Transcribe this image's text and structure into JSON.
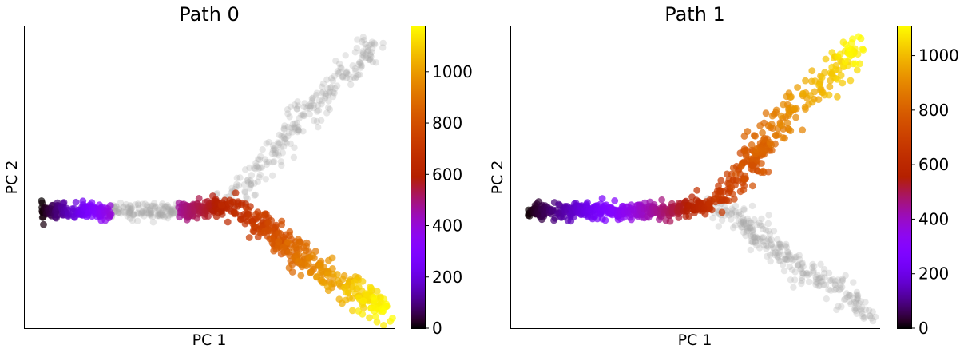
{
  "chart_data": [
    {
      "type": "scatter",
      "title": "Path 0",
      "xlabel": "PC 1",
      "ylabel": "PC 2",
      "x_ticks": "none",
      "y_ticks": "none",
      "colormap": "gnuplot",
      "colorbar": {
        "range": [
          0,
          1180
        ],
        "ticks": [
          0,
          200,
          400,
          600,
          800,
          1000
        ]
      },
      "grey_color": "#aaaaaa",
      "trunk": {
        "x_range": [
          -8.0,
          0.5
        ],
        "y_center": 0.0,
        "spread": 0.15,
        "n": 420,
        "colored_segments": [
          [
            -8.0,
            -4.8,
            0,
            400
          ],
          [
            -1.7,
            0.5,
            470,
            620
          ]
        ],
        "grey_segments": [
          [
            -4.8,
            -1.7
          ]
        ]
      },
      "branch_up": {
        "start": [
          0.5,
          0.3
        ],
        "end": [
          7.1,
          6.6
        ],
        "spread": 0.3,
        "n": 250,
        "colored": false
      },
      "branch_down": {
        "start": [
          0.5,
          0.3
        ],
        "end": [
          7.6,
          -3.9
        ],
        "spread": 0.28,
        "n": 340,
        "colored": true,
        "value_range": [
          620,
          1180
        ]
      },
      "xlim": [
        -8.8,
        8.2
      ],
      "ylim": [
        -4.6,
        7.3
      ]
    },
    {
      "type": "scatter",
      "title": "Path 1",
      "xlabel": "PC 1",
      "ylabel": "PC 2",
      "x_ticks": "none",
      "y_ticks": "none",
      "colormap": "gnuplot",
      "colorbar": {
        "range": [
          0,
          1110
        ],
        "ticks": [
          0,
          200,
          400,
          600,
          800,
          1000
        ]
      },
      "grey_color": "#aaaaaa",
      "trunk": {
        "x_range": [
          -8.0,
          0.5
        ],
        "y_center": 0.0,
        "spread": 0.15,
        "n": 420,
        "colored_segments": [
          [
            -8.0,
            0.5,
            0,
            640
          ]
        ],
        "grey_segments": []
      },
      "branch_up": {
        "start": [
          0.5,
          0.3
        ],
        "end": [
          7.1,
          6.6
        ],
        "spread": 0.3,
        "n": 280,
        "colored": true,
        "value_range": [
          640,
          1110
        ]
      },
      "branch_down": {
        "start": [
          0.5,
          0.3
        ],
        "end": [
          7.6,
          -3.9
        ],
        "spread": 0.28,
        "n": 280,
        "colored": false
      },
      "xlim": [
        -8.8,
        8.2
      ],
      "ylim": [
        -4.6,
        7.3
      ]
    }
  ]
}
